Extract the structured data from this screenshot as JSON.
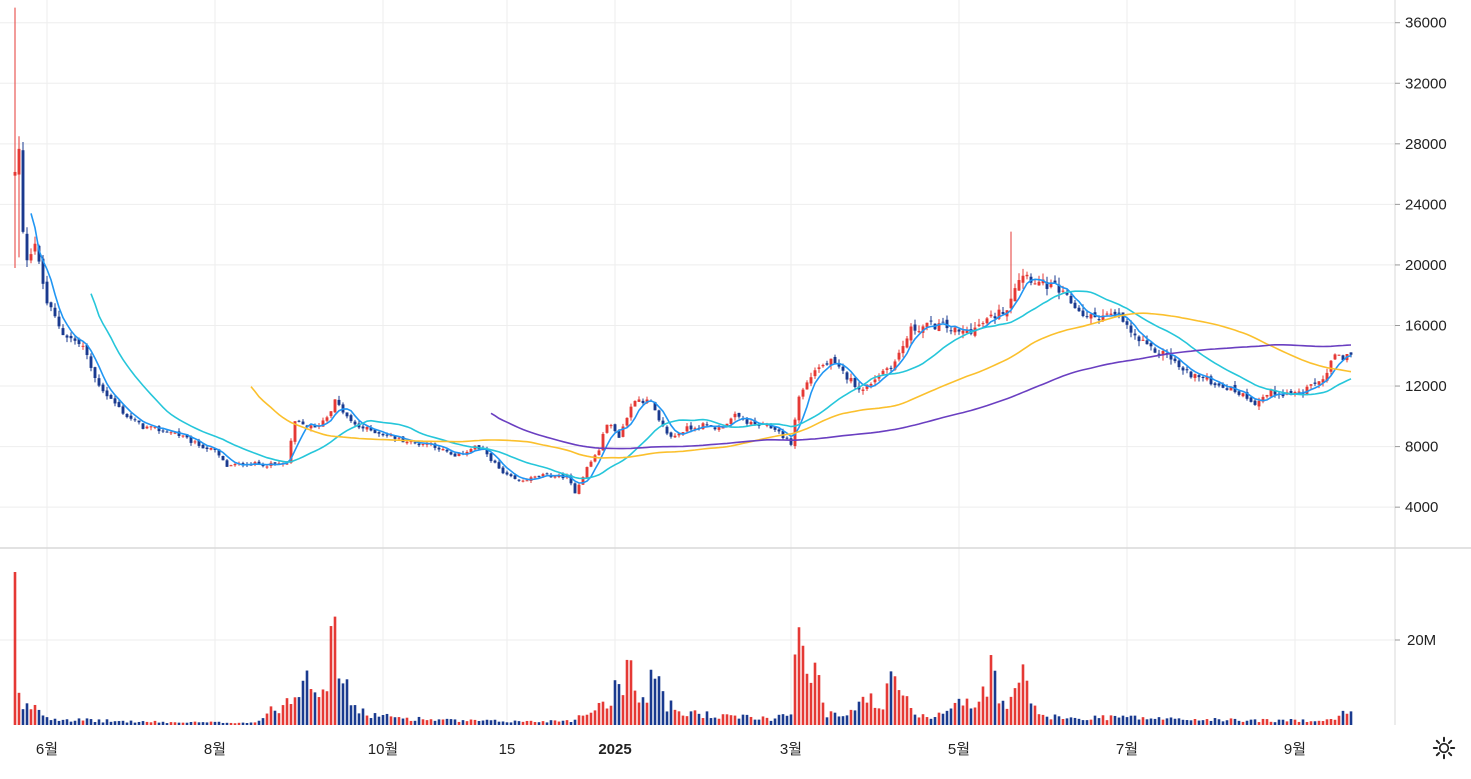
{
  "chart_data": {
    "type": "candlestick",
    "title": "",
    "price_axis": {
      "ticks": [
        4000,
        8000,
        12000,
        16000,
        20000,
        24000,
        28000,
        32000,
        36000
      ],
      "tick_labels": [
        "4000",
        "8000",
        "12000",
        "16000",
        "20000",
        "24000",
        "28000",
        "32000",
        "36000"
      ],
      "range": [
        1500,
        37500
      ]
    },
    "volume_axis": {
      "ticks": [
        20000000
      ],
      "tick_labels": [
        "20M"
      ],
      "range": [
        0,
        40000000
      ]
    },
    "time_axis": {
      "tick_labels": [
        "6월",
        "8월",
        "10월",
        "15",
        "2025",
        "3월",
        "5월",
        "7월",
        "9월"
      ],
      "tick_index": [
        8,
        50,
        92,
        123,
        150,
        194,
        236,
        278,
        320
      ],
      "total_bars": 335
    },
    "colors": {
      "up": "#e53935",
      "down": "#1a3a8f",
      "ma_short": "#2196f3",
      "ma_mid": "#26c6da",
      "ma_long": "#fbc02d",
      "ma_longest": "#6a3fc1",
      "grid": "#eeeeee",
      "divider": "#d8d8d8"
    },
    "price_anchors": [
      [
        0,
        26000
      ],
      [
        1,
        27500
      ],
      [
        2,
        22000
      ],
      [
        3,
        20500
      ],
      [
        5,
        21500
      ],
      [
        6,
        20000
      ],
      [
        8,
        17500
      ],
      [
        12,
        15500
      ],
      [
        17,
        14600
      ],
      [
        20,
        12500
      ],
      [
        23,
        11400
      ],
      [
        28,
        10000
      ],
      [
        32,
        9300
      ],
      [
        40,
        8900
      ],
      [
        45,
        8200
      ],
      [
        50,
        7700
      ],
      [
        53,
        6700
      ],
      [
        58,
        6900
      ],
      [
        63,
        6800
      ],
      [
        68,
        6900
      ],
      [
        70,
        9600
      ],
      [
        75,
        9200
      ],
      [
        78,
        10000
      ],
      [
        80,
        11000
      ],
      [
        84,
        9600
      ],
      [
        86,
        9300
      ],
      [
        90,
        9000
      ],
      [
        96,
        8500
      ],
      [
        100,
        8200
      ],
      [
        104,
        8200
      ],
      [
        110,
        7300
      ],
      [
        115,
        8000
      ],
      [
        118,
        7500
      ],
      [
        122,
        6200
      ],
      [
        126,
        5700
      ],
      [
        132,
        6100
      ],
      [
        138,
        6000
      ],
      [
        140,
        5000
      ],
      [
        143,
        6600
      ],
      [
        146,
        7800
      ],
      [
        148,
        9600
      ],
      [
        151,
        8700
      ],
      [
        155,
        11200
      ],
      [
        159,
        10900
      ],
      [
        161,
        9600
      ],
      [
        164,
        8600
      ],
      [
        168,
        9200
      ],
      [
        172,
        9400
      ],
      [
        176,
        9200
      ],
      [
        180,
        10000
      ],
      [
        184,
        9500
      ],
      [
        190,
        9200
      ],
      [
        194,
        8200
      ],
      [
        196,
        11300
      ],
      [
        200,
        13100
      ],
      [
        204,
        13600
      ],
      [
        208,
        12600
      ],
      [
        212,
        11700
      ],
      [
        216,
        12800
      ],
      [
        220,
        13600
      ],
      [
        224,
        15700
      ],
      [
        228,
        16000
      ],
      [
        232,
        16000
      ],
      [
        236,
        15500
      ],
      [
        240,
        15800
      ],
      [
        244,
        16500
      ],
      [
        248,
        17200
      ],
      [
        250,
        18700
      ],
      [
        252,
        19500
      ],
      [
        256,
        18800
      ],
      [
        260,
        18500
      ],
      [
        264,
        17500
      ],
      [
        268,
        16500
      ],
      [
        272,
        16700
      ],
      [
        276,
        16600
      ],
      [
        280,
        15200
      ],
      [
        284,
        14400
      ],
      [
        288,
        14100
      ],
      [
        292,
        13000
      ],
      [
        296,
        12600
      ],
      [
        300,
        12200
      ],
      [
        304,
        11800
      ],
      [
        308,
        11300
      ],
      [
        310,
        10900
      ],
      [
        314,
        11600
      ],
      [
        318,
        11500
      ],
      [
        322,
        11600
      ],
      [
        325,
        12100
      ],
      [
        328,
        12800
      ],
      [
        330,
        14100
      ],
      [
        332,
        13600
      ],
      [
        334,
        14300
      ]
    ],
    "volume_anchors": [
      [
        0,
        35000000
      ],
      [
        1,
        6000000
      ],
      [
        2,
        3500000
      ],
      [
        5,
        5000000
      ],
      [
        8,
        1800000
      ],
      [
        15,
        1200000
      ],
      [
        25,
        900000
      ],
      [
        40,
        600000
      ],
      [
        60,
        600000
      ],
      [
        70,
        7000000
      ],
      [
        73,
        15500000
      ],
      [
        76,
        8500000
      ],
      [
        78,
        12000000
      ],
      [
        80,
        22500000
      ],
      [
        82,
        10000000
      ],
      [
        86,
        3000000
      ],
      [
        92,
        2000000
      ],
      [
        100,
        1500000
      ],
      [
        110,
        1000000
      ],
      [
        120,
        900000
      ],
      [
        130,
        800000
      ],
      [
        140,
        1200000
      ],
      [
        148,
        6000000
      ],
      [
        151,
        9000000
      ],
      [
        154,
        15000000
      ],
      [
        157,
        5500000
      ],
      [
        160,
        13000000
      ],
      [
        163,
        5000000
      ],
      [
        166,
        2500000
      ],
      [
        170,
        3000000
      ],
      [
        175,
        2000000
      ],
      [
        182,
        1800000
      ],
      [
        190,
        1500000
      ],
      [
        194,
        4000000
      ],
      [
        196,
        22000000
      ],
      [
        198,
        9000000
      ],
      [
        200,
        17000000
      ],
      [
        203,
        3000000
      ],
      [
        208,
        2500000
      ],
      [
        212,
        8000000
      ],
      [
        216,
        3000000
      ],
      [
        220,
        12000000
      ],
      [
        224,
        3000000
      ],
      [
        230,
        2000000
      ],
      [
        236,
        6000000
      ],
      [
        240,
        3500000
      ],
      [
        244,
        13000000
      ],
      [
        248,
        3000000
      ],
      [
        252,
        12500000
      ],
      [
        256,
        2000000
      ],
      [
        265,
        1500000
      ],
      [
        275,
        2000000
      ],
      [
        285,
        1500000
      ],
      [
        300,
        1200000
      ],
      [
        320,
        1000000
      ],
      [
        330,
        1500000
      ],
      [
        332,
        2500000
      ],
      [
        334,
        3500000
      ]
    ],
    "wick_spikes": [
      {
        "index": 0,
        "high": 37000,
        "low": 19800
      },
      {
        "index": 1,
        "high": 28500,
        "low": 20500
      },
      {
        "index": 249,
        "high": 22200,
        "low": 16800
      }
    ],
    "volume_spikes": [
      {
        "index": 0,
        "volume": 36000000,
        "up": true
      },
      {
        "index": 80,
        "volume": 25500000,
        "up": true
      },
      {
        "index": 196,
        "volume": 23000000,
        "up": true
      }
    ],
    "moving_averages": [
      {
        "name": "ma_short",
        "period": 5
      },
      {
        "name": "ma_mid",
        "period": 20
      },
      {
        "name": "ma_long",
        "period": 60
      },
      {
        "name": "ma_longest",
        "period": 120
      }
    ]
  },
  "ui": {
    "settings_icon": "gear-icon"
  }
}
